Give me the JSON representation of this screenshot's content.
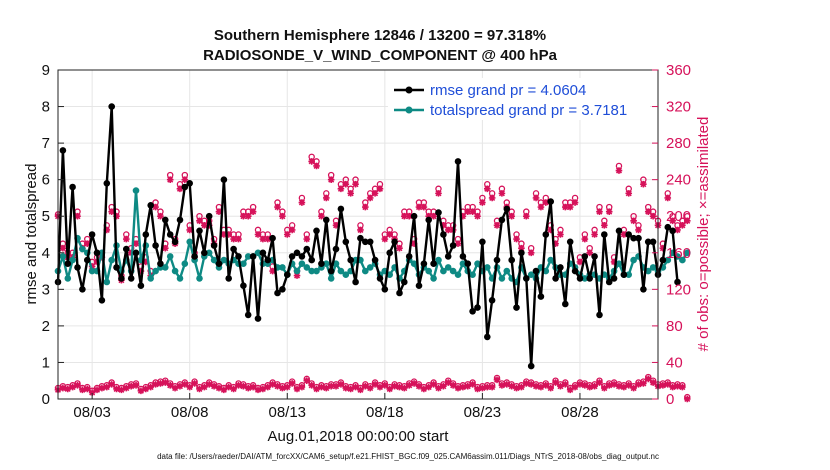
{
  "chart_data": {
    "type": "line",
    "title_line1": "Southern Hemisphere 12846 / 13200 = 97.318%",
    "title_line2": "RADIOSONDE_V_WIND_COMPONENT @ 400 hPa",
    "xlabel": "Aug.01,2018 00:00:00 start",
    "ylabel_left": "rmse and totalspread",
    "ylabel_right": "# of obs: o=possible; ×=assimilated",
    "footer": "data file: /Users/raeder/DAI/ATM_forcXX/CAM6_setup/f.e21.FHIST_BGC.f09_025.CAM6assim.011/Diags_NTrS_2018-08/obs_diag_output.nc",
    "x_range_days": [
      1.25,
      32.0
    ],
    "xticks": [
      {
        "day": 3,
        "label": "08/03"
      },
      {
        "day": 8,
        "label": "08/08"
      },
      {
        "day": 13,
        "label": "08/13"
      },
      {
        "day": 18,
        "label": "08/18"
      },
      {
        "day": 23,
        "label": "08/23"
      },
      {
        "day": 28,
        "label": "08/28"
      }
    ],
    "ylim_left": [
      0,
      9
    ],
    "yticks_left": [
      "0",
      "1",
      "2",
      "3",
      "4",
      "5",
      "6",
      "7",
      "8",
      "9"
    ],
    "ylim_right": [
      0,
      360
    ],
    "yticks_right": [
      "0",
      "40",
      "80",
      "120",
      "160",
      "200",
      "240",
      "280",
      "320",
      "360"
    ],
    "x_start_day": 1.25,
    "x_step_days": 0.25,
    "legend": [
      {
        "name": "rmse grand pr = 4.0604",
        "color": "#000000"
      },
      {
        "name": "totalspread grand pr = 3.7181",
        "color": "#0e8a84"
      }
    ],
    "series": [
      {
        "name": "rmse",
        "color": "#000000",
        "values": [
          3.2,
          6.8,
          3.7,
          5.8,
          3.6,
          3.0,
          3.8,
          4.5,
          4.0,
          2.7,
          5.9,
          8.0,
          3.6,
          3.3,
          4.1,
          3.3,
          4.0,
          3.1,
          4.5,
          5.3,
          4.2,
          3.7,
          4.9,
          4.5,
          4.3,
          4.9,
          5.8,
          5.9,
          3.9,
          4.6,
          4.0,
          5.0,
          4.2,
          3.7,
          6.0,
          3.3,
          4.1,
          3.9,
          3.1,
          2.3,
          3.9,
          2.2,
          4.0,
          3.8,
          4.4,
          2.9,
          3.0,
          3.4,
          3.9,
          4.0,
          3.9,
          4.1,
          3.8,
          4.6,
          3.7,
          4.9,
          3.5,
          4.1,
          5.2,
          4.3,
          3.8,
          3.2,
          4.4,
          4.3,
          4.3,
          3.8,
          3.3,
          3.0,
          4.0,
          4.3,
          2.9,
          3.2,
          3.9,
          5.0,
          3.1,
          3.7,
          4.9,
          3.7,
          5.1,
          4.5,
          3.9,
          4.2,
          6.5,
          3.9,
          3.7,
          2.4,
          2.5,
          4.3,
          1.7,
          2.7,
          3.8,
          4.9,
          5.2,
          3.8,
          2.5,
          4.0,
          3.3,
          0.9,
          3.5,
          2.8,
          4.5,
          5.4,
          3.3,
          3.6,
          2.6,
          4.3,
          3.5,
          3.3,
          3.9,
          3.3,
          3.9,
          2.3,
          4.5,
          3.2,
          3.3,
          4.6,
          3.4,
          4.5,
          4.4,
          4.4,
          3.0,
          4.3,
          4.3,
          3.4,
          3.8,
          4.7,
          4.6,
          3.2
        ]
      },
      {
        "name": "totalspread",
        "color": "#0e8a84",
        "values": [
          3.5,
          3.9,
          3.3,
          3.8,
          4.4,
          4.1,
          4.0,
          3.5,
          3.5,
          4.0,
          3.2,
          3.8,
          4.2,
          3.5,
          3.8,
          3.5,
          5.7,
          3.8,
          4.2,
          3.3,
          3.5,
          3.6,
          3.6,
          3.9,
          3.5,
          3.3,
          3.7,
          4.3,
          3.8,
          3.3,
          3.9,
          4.0,
          3.8,
          3.6,
          3.8,
          3.7,
          3.8,
          3.7,
          3.7,
          3.9,
          3.9,
          4.0,
          3.7,
          3.7,
          3.8,
          3.6,
          3.6,
          3.4,
          3.7,
          3.5,
          3.7,
          3.6,
          3.5,
          3.5,
          3.6,
          3.7,
          3.3,
          3.7,
          3.5,
          3.4,
          3.5,
          3.8,
          3.8,
          3.5,
          3.6,
          3.7,
          3.4,
          3.5,
          3.4,
          3.6,
          3.3,
          3.5,
          3.8,
          3.7,
          3.4,
          3.6,
          3.5,
          3.3,
          3.8,
          3.5,
          3.6,
          3.5,
          3.4,
          3.7,
          3.5,
          3.4,
          3.7,
          3.5,
          3.6,
          3.3,
          3.6,
          3.3,
          3.5,
          3.3,
          3.2,
          3.6,
          3.3,
          3.4,
          3.3,
          3.6,
          3.5,
          3.8,
          3.6,
          3.4,
          3.4,
          3.7,
          3.6,
          3.4,
          3.3,
          3.4,
          3.4,
          3.3,
          3.4,
          3.3,
          3.5,
          3.7,
          3.4,
          3.4,
          3.8,
          3.9,
          3.6,
          3.5,
          3.6,
          3.5,
          3.6,
          3.8,
          4.0,
          3.9,
          3.8,
          4.0
        ]
      },
      {
        "name": "obs possible (o)",
        "axis": "right",
        "color": "#d6125a",
        "values": [
          202,
          170,
          160,
          160,
          205,
          170,
          175,
          150,
          155,
          160,
          190,
          210,
          205,
          135,
          180,
          165,
          175,
          145,
          155,
          140,
          215,
          205,
          170,
          245,
          175,
          235,
          245,
          190,
          160,
          200,
          195,
          195,
          175,
          210,
          185,
          185,
          180,
          180,
          205,
          205,
          210,
          185,
          180,
          180,
          145,
          215,
          205,
          185,
          190,
          140,
          220,
          180,
          265,
          260,
          205,
          225,
          245,
          195,
          235,
          240,
          230,
          240,
          190,
          215,
          225,
          230,
          235,
          180,
          185,
          180,
          170,
          205,
          205,
          175,
          215,
          215,
          205,
          205,
          230,
          195,
          190,
          190,
          175,
          205,
          210,
          210,
          205,
          220,
          235,
          225,
          195,
          230,
          215,
          205,
          180,
          170,
          205,
          165,
          225,
          215,
          220,
          190,
          175,
          185,
          215,
          215,
          220,
          155,
          180,
          165,
          185,
          210,
          195,
          210,
          155,
          255,
          185,
          230,
          200,
          190,
          240,
          210,
          205,
          195,
          170,
          225,
          200,
          190,
          195,
          200
        ]
      },
      {
        "name": "obs assimilated (x)",
        "axis": "right",
        "color": "#d6125a",
        "values": [
          200,
          165,
          155,
          155,
          200,
          165,
          170,
          145,
          150,
          155,
          185,
          205,
          200,
          130,
          175,
          160,
          170,
          140,
          150,
          135,
          210,
          200,
          165,
          240,
          170,
          230,
          240,
          185,
          155,
          195,
          190,
          190,
          170,
          205,
          180,
          180,
          175,
          175,
          200,
          200,
          205,
          180,
          175,
          175,
          140,
          210,
          200,
          180,
          185,
          135,
          215,
          175,
          260,
          255,
          200,
          220,
          240,
          190,
          230,
          235,
          225,
          235,
          185,
          210,
          220,
          225,
          230,
          175,
          180,
          175,
          165,
          200,
          200,
          170,
          210,
          210,
          200,
          200,
          225,
          190,
          185,
          185,
          170,
          200,
          205,
          205,
          200,
          215,
          230,
          220,
          190,
          225,
          210,
          200,
          175,
          165,
          200,
          160,
          220,
          210,
          215,
          185,
          170,
          180,
          210,
          210,
          215,
          150,
          175,
          160,
          180,
          205,
          190,
          205,
          150,
          250,
          180,
          225,
          195,
          185,
          235,
          205,
          200,
          190,
          165,
          220,
          195,
          185,
          190,
          195
        ]
      },
      {
        "name": "obs possible (o) 00Z",
        "axis": "right",
        "color": "#d6125a",
        "values": [
          12,
          14,
          13,
          15,
          17,
          12,
          13,
          9,
          12,
          14,
          15,
          18,
          13,
          12,
          14,
          16,
          17,
          11,
          13,
          15,
          18,
          19,
          20,
          17,
          14,
          16,
          18,
          15,
          19,
          13,
          15,
          18,
          16,
          14,
          12,
          15,
          13,
          17,
          16,
          14,
          15,
          12,
          13,
          15,
          18,
          16,
          14,
          15,
          19,
          13,
          15,
          22,
          17,
          13,
          15,
          14,
          16,
          16,
          18,
          14,
          13,
          15,
          12,
          16,
          14,
          18,
          15,
          17,
          13,
          16,
          15,
          14,
          17,
          19,
          16,
          13,
          15,
          18,
          14,
          16,
          20,
          17,
          14,
          15,
          16,
          18,
          13,
          14,
          15,
          15,
          23,
          17,
          18,
          16,
          14,
          15,
          19,
          18,
          16,
          15,
          17,
          14,
          20,
          16,
          18,
          12,
          15,
          18,
          17,
          15,
          16,
          20,
          14,
          17,
          18,
          16,
          15,
          17,
          14,
          18,
          19,
          24,
          20,
          16,
          17,
          18,
          15,
          16,
          15,
          2
        ]
      },
      {
        "name": "obs assimilated (x) 00Z",
        "axis": "right",
        "color": "#d6125a",
        "values": [
          10,
          12,
          11,
          13,
          15,
          10,
          11,
          7,
          10,
          12,
          13,
          16,
          11,
          10,
          12,
          14,
          15,
          9,
          11,
          13,
          16,
          17,
          18,
          15,
          12,
          14,
          16,
          13,
          17,
          11,
          13,
          16,
          14,
          12,
          10,
          13,
          11,
          15,
          14,
          12,
          13,
          10,
          11,
          13,
          16,
          14,
          12,
          13,
          17,
          11,
          13,
          20,
          15,
          11,
          13,
          12,
          14,
          14,
          16,
          12,
          11,
          13,
          10,
          14,
          12,
          16,
          13,
          15,
          11,
          14,
          13,
          12,
          15,
          17,
          14,
          11,
          13,
          16,
          12,
          14,
          18,
          15,
          12,
          13,
          14,
          16,
          11,
          12,
          13,
          13,
          21,
          15,
          16,
          14,
          12,
          13,
          17,
          16,
          14,
          13,
          15,
          12,
          18,
          14,
          16,
          10,
          13,
          16,
          15,
          13,
          14,
          18,
          12,
          15,
          16,
          14,
          13,
          15,
          12,
          16,
          17,
          22,
          18,
          14,
          15,
          16,
          13,
          14,
          13,
          0
        ]
      }
    ]
  }
}
